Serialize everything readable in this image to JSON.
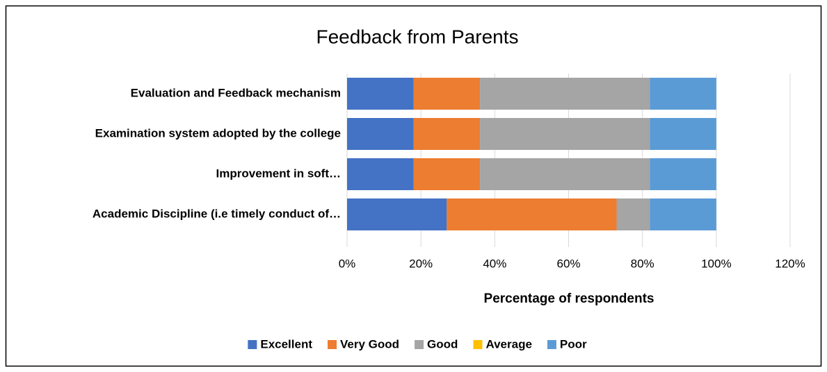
{
  "chart_data": {
    "type": "stacked_bar_horizontal",
    "title": "Feedback from Parents",
    "x_label": "Percentage of respondents",
    "categories": [
      "Evaluation and Feedback mechanism",
      "Examination system adopted by the college",
      "Improvement in soft…",
      "Academic Discipline (i.e timely conduct of…"
    ],
    "series": [
      {
        "name": "Excellent",
        "color": "#4472c4",
        "values": [
          18,
          18,
          18,
          27
        ]
      },
      {
        "name": "Very Good",
        "color": "#ed7d31",
        "values": [
          18,
          18,
          18,
          46
        ]
      },
      {
        "name": "Good",
        "color": "#a5a5a5",
        "values": [
          46,
          46,
          46,
          9
        ]
      },
      {
        "name": "Average",
        "color": "#ffc000",
        "values": [
          0,
          0,
          0,
          0
        ]
      },
      {
        "name": "Poor",
        "color": "#5b9bd5",
        "values": [
          18,
          18,
          18,
          18
        ]
      }
    ],
    "xlim": [
      0,
      120
    ],
    "xticks": [
      {
        "value": 0,
        "label": "0%"
      },
      {
        "value": 20,
        "label": "20%"
      },
      {
        "value": 40,
        "label": "40%"
      },
      {
        "value": 60,
        "label": "60%"
      },
      {
        "value": 80,
        "label": "80%"
      },
      {
        "value": 100,
        "label": "100%"
      },
      {
        "value": 120,
        "label": "120%"
      }
    ],
    "grid": true,
    "legend": "bottom"
  }
}
